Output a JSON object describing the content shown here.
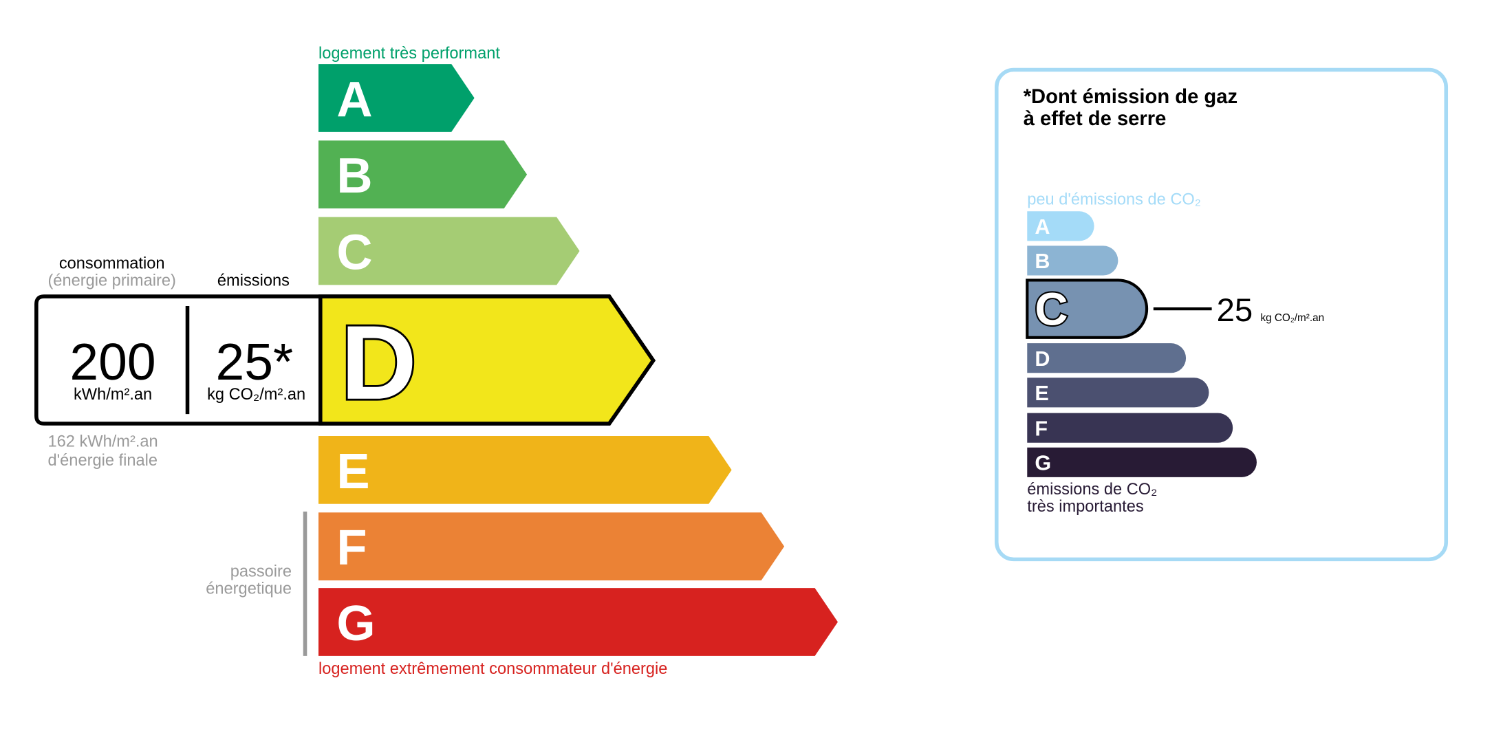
{
  "energy": {
    "top_label": "logement très performant",
    "bottom_label": "logement extrêmement consommateur d'énergie",
    "top_label_color": "#00a06b",
    "bottom_label_color": "#d7221f",
    "classes": [
      {
        "letter": "A",
        "color": "#00a06b"
      },
      {
        "letter": "B",
        "color": "#52b153"
      },
      {
        "letter": "C",
        "color": "#a5cc74"
      },
      {
        "letter": "D",
        "color": "#f2e61b"
      },
      {
        "letter": "E",
        "color": "#f0b419"
      },
      {
        "letter": "F",
        "color": "#eb8235"
      },
      {
        "letter": "G",
        "color": "#d7221f"
      }
    ],
    "selected_class": "D",
    "consumption_header": "consommation",
    "consumption_subheader": "(énergie primaire)",
    "emissions_header": "émissions",
    "consumption_value": "200",
    "consumption_unit": "kWh/m².an",
    "emissions_value": "25*",
    "emissions_unit": "kg CO₂/m².an",
    "final_energy_value": "162 kWh/m².an",
    "final_energy_label": "d'énergie finale",
    "passoire_line1": "passoire",
    "passoire_line2": "énergetique"
  },
  "ges": {
    "title_line1": "*Dont émission de gaz",
    "title_line2": "à effet de serre",
    "top_label": "peu d'émissions de CO₂",
    "bottom_label_line1": "émissions de CO₂",
    "bottom_label_line2": "très importantes",
    "border_color": "#a6daf5",
    "classes": [
      {
        "letter": "A",
        "color": "#a4dbf8"
      },
      {
        "letter": "B",
        "color": "#8cb4d3"
      },
      {
        "letter": "C",
        "color": "#7792b1"
      },
      {
        "letter": "D",
        "color": "#5f6f8f"
      },
      {
        "letter": "E",
        "color": "#4b5070"
      },
      {
        "letter": "F",
        "color": "#383453"
      },
      {
        "letter": "G",
        "color": "#281b35"
      }
    ],
    "selected_class": "C",
    "value": "25",
    "unit": "kg CO₂/m².an"
  }
}
